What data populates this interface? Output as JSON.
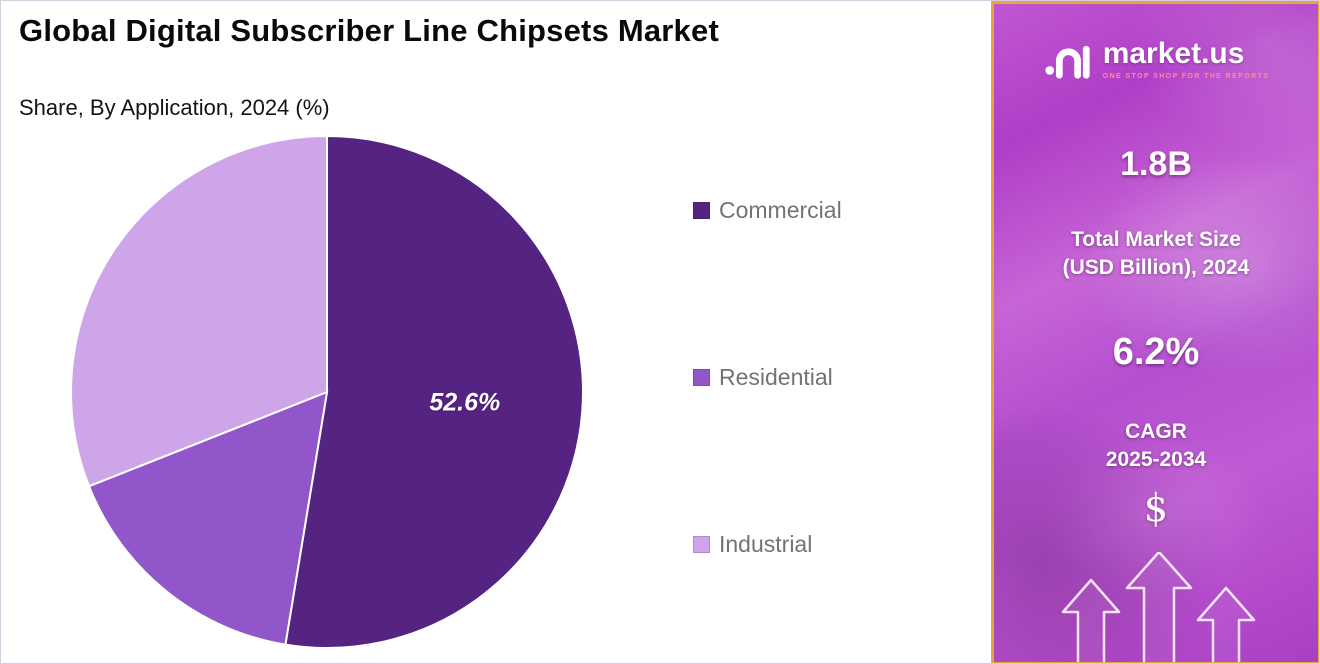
{
  "chart": {
    "title": "Global Digital Subscriber Line Chipsets Market",
    "subtitle": "Share, By Application, 2024 (%)"
  },
  "chart_data": {
    "type": "pie",
    "title": "Global Digital Subscriber Line Chipsets Market",
    "subtitle": "Share, By Application, 2024 (%)",
    "unit": "%",
    "start_angle_deg": 0,
    "direction": "clockwise",
    "legend_position": "right",
    "slices": [
      {
        "label": "Commercial",
        "value": 52.6,
        "color": "#552483",
        "data_label": "52.6%"
      },
      {
        "label": "Residential",
        "value": 16.4,
        "color": "#9256cb",
        "data_label": ""
      },
      {
        "label": "Industrial",
        "value": 31.0,
        "color": "#cfa5ea",
        "data_label": ""
      }
    ]
  },
  "side_panel": {
    "brand_name": "market.us",
    "brand_tagline": "ONE STOP SHOP FOR THE REPORTS",
    "market_size_value": "1.8B",
    "market_size_label_line1": "Total Market Size",
    "market_size_label_line2": "(USD Billion), 2024",
    "cagr_value": "6.2%",
    "cagr_label_line1": "CAGR",
    "cagr_label_line2": "2025-2034",
    "dollar_symbol": "$",
    "colors": {
      "panel_border": "#e9a43f",
      "panel_purple": "#b44fcf",
      "tagline_red": "#ff8e87"
    }
  }
}
